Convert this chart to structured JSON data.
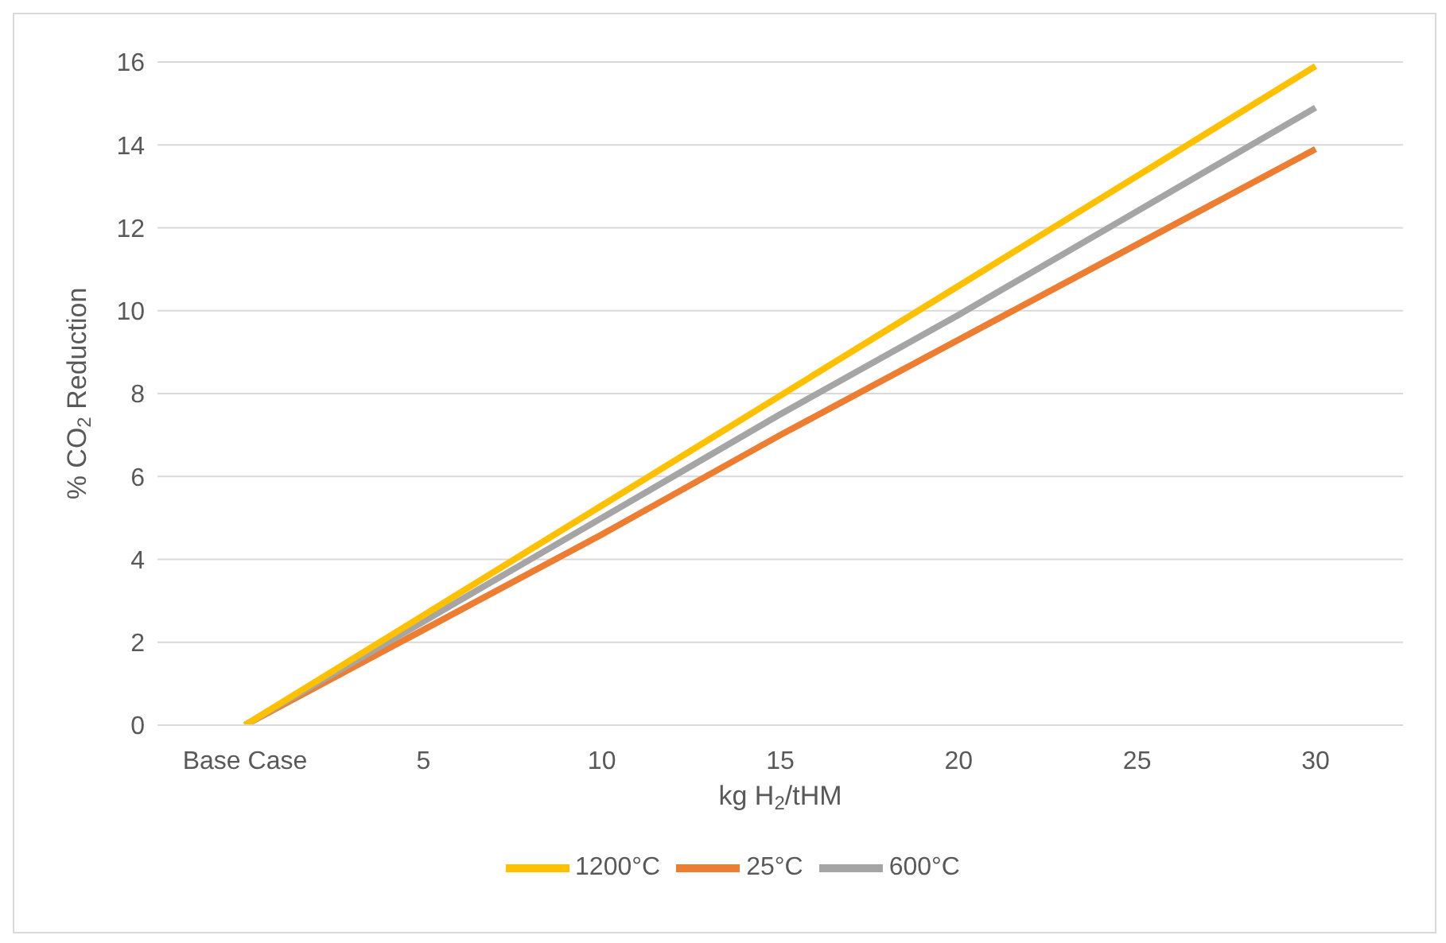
{
  "chart_data": {
    "type": "line",
    "xlabel": "kg H$_{2}$/tHM",
    "ylabel": "% CO$_{2}$ Reduction",
    "categories": [
      "Base Case",
      "5",
      "10",
      "15",
      "20",
      "25",
      "30"
    ],
    "series": [
      {
        "name": "25°C",
        "color": "#ed7d31",
        "values": [
          0,
          2.3,
          4.6,
          7.0,
          9.3,
          11.6,
          13.9
        ]
      },
      {
        "name": "600°C",
        "color": "#a5a5a5",
        "values": [
          0,
          2.5,
          5.0,
          7.5,
          9.9,
          12.4,
          14.9
        ]
      },
      {
        "name": "1200°C",
        "color": "#ffc000",
        "values": [
          0,
          2.65,
          5.3,
          7.95,
          10.6,
          13.25,
          15.9
        ]
      }
    ],
    "ylim": [
      0,
      16
    ],
    "yticks": [
      0,
      2,
      4,
      6,
      8,
      10,
      12,
      14,
      16
    ],
    "grid": "y",
    "legend": "bottom",
    "marker": "none",
    "line_style": "solid"
  }
}
